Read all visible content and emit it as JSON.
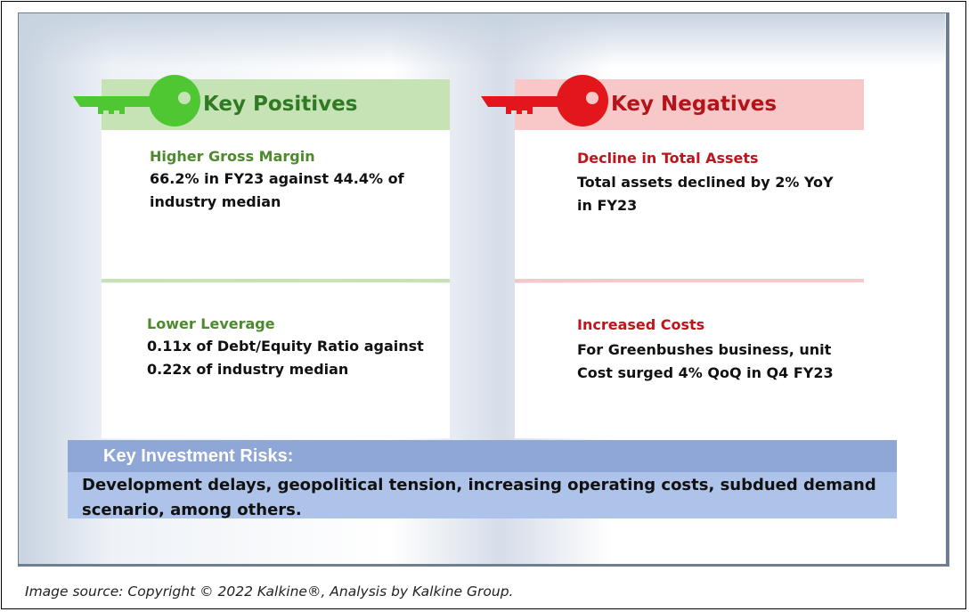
{
  "positives": {
    "header": "Key Positives",
    "items": [
      {
        "title": "Higher Gross Margin",
        "body": "66.2% in FY23 against 44.4% of industry median"
      },
      {
        "title": "Lower Leverage",
        "body": "0.11x of Debt/Equity Ratio against 0.22x of industry median"
      }
    ],
    "accent_color": "#4ec733",
    "band_color": "#c6e3b6"
  },
  "negatives": {
    "header": "Key Negatives",
    "items": [
      {
        "title": "Decline in Total Assets",
        "body": "Total assets declined by 2% YoY in FY23"
      },
      {
        "title": "Increased Costs",
        "body": "For Greenbushes business, unit Cost surged 4% QoQ in Q4 FY23"
      }
    ],
    "accent_color": "#e3161c",
    "band_color": "#f8c8c8"
  },
  "risks": {
    "header": "Key Investment Risks:",
    "body": "Development delays, geopolitical tension, increasing operating costs, subdued demand scenario, among others."
  },
  "footer": {
    "source": "Image source: Copyright © 2022 Kalkine®, Analysis by Kalkine Group."
  },
  "icons": {
    "positive": "green-key-icon",
    "negative": "red-key-icon"
  }
}
